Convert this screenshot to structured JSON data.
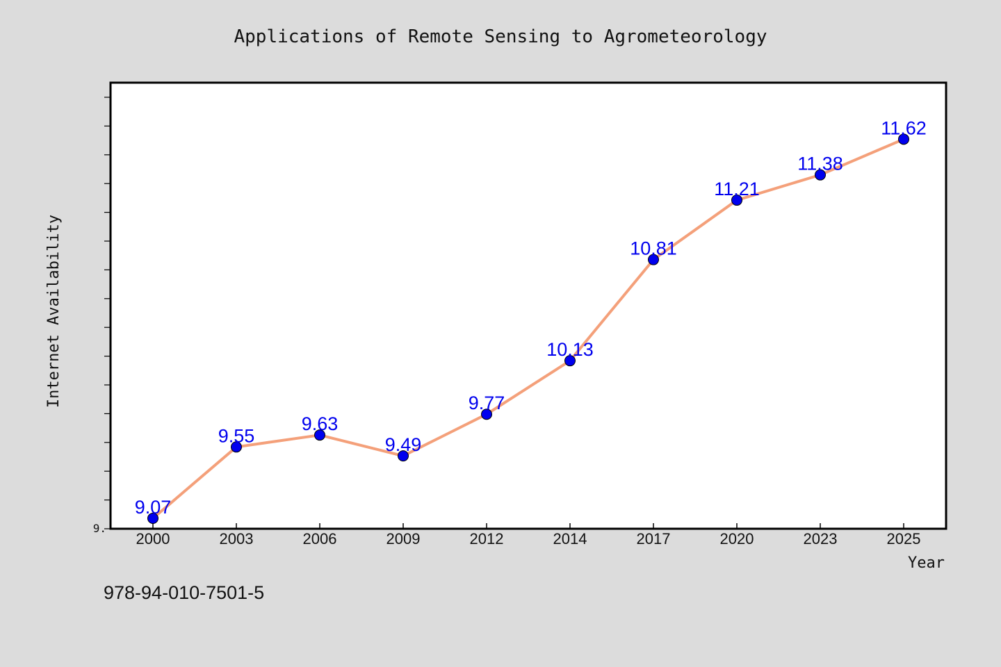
{
  "chart_data": {
    "type": "line",
    "title": "Applications of Remote Sensing to Agrometeorology",
    "xlabel": "Year",
    "ylabel": "Internet Availability",
    "categories": [
      "2000",
      "2003",
      "2006",
      "2009",
      "2012",
      "2014",
      "2017",
      "2020",
      "2023",
      "2025"
    ],
    "series": [
      {
        "values": [
          9.07,
          9.55,
          9.63,
          9.49,
          9.77,
          10.13,
          10.81,
          11.21,
          11.38,
          11.62
        ],
        "line_color": "#f4a07a",
        "marker_color": "#0000ee"
      }
    ],
    "data_labels": [
      "9.07",
      "9.55",
      "9.63",
      "9.49",
      "9.77",
      "10.13",
      "10.81",
      "11.21",
      "11.38",
      "11.62"
    ],
    "y_tick_label": "9.",
    "ylim": [
      9.0,
      12.0
    ],
    "grid": false
  },
  "footer": {
    "isbn": "978-94-010-7501-5"
  }
}
